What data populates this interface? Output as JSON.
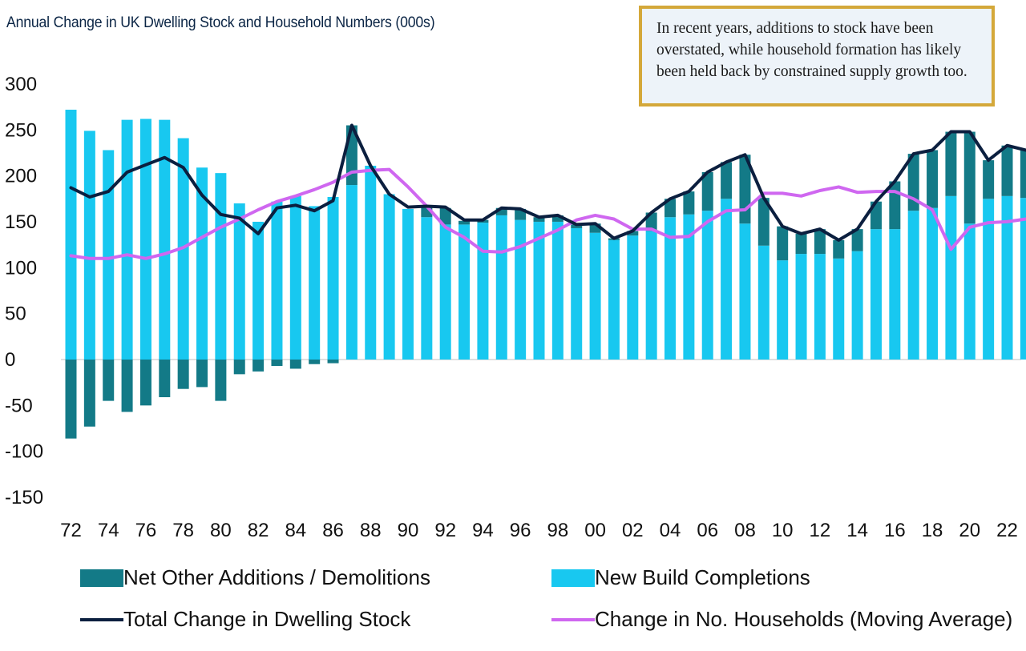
{
  "title": "Annual Change in UK Dwelling Stock and Household Numbers (000s)",
  "callout": "In recent years, additions to stock have been overstated, while household formation has likely been held back by constrained supply growth too.",
  "colors": {
    "new_build": "#18c8f0",
    "net_other": "#137a87",
    "total": "#0b1f3f",
    "households": "#cf67f0",
    "callout_border": "#d4a83a",
    "callout_bg": "#edf3f9"
  },
  "legend": {
    "net_other": "Net Other Additions / Demolitions",
    "new_build": "New Build Completions",
    "total": "Total Change in Dwelling Stock",
    "households": "Change in No. Households (Moving Average)"
  },
  "chart_data": {
    "type": "bar",
    "title": "Annual Change in UK Dwelling Stock and Household Numbers (000s)",
    "ylim": [
      -150,
      300
    ],
    "yticks": [
      300,
      250,
      200,
      150,
      100,
      50,
      0,
      -50,
      -100,
      -150
    ],
    "xtick_labels": [
      "72",
      "74",
      "76",
      "78",
      "80",
      "82",
      "84",
      "86",
      "88",
      "90",
      "92",
      "94",
      "96",
      "98",
      "00",
      "02",
      "04",
      "06",
      "08",
      "10",
      "12",
      "14",
      "16",
      "18",
      "20",
      "22"
    ],
    "categories": [
      "72",
      "73",
      "74",
      "75",
      "76",
      "77",
      "78",
      "79",
      "80",
      "81",
      "82",
      "83",
      "84",
      "85",
      "86",
      "87",
      "88",
      "89",
      "90",
      "91",
      "92",
      "93",
      "94",
      "95",
      "96",
      "97",
      "98",
      "99",
      "00",
      "01",
      "02",
      "03",
      "04",
      "05",
      "06",
      "07",
      "08",
      "09",
      "10",
      "11",
      "12",
      "13",
      "14",
      "15",
      "16",
      "17",
      "18",
      "19",
      "20",
      "21",
      "22",
      "23"
    ],
    "series": [
      {
        "name": "New Build Completions",
        "kind": "stacked-bar",
        "values": [
          272,
          249,
          228,
          261,
          262,
          261,
          241,
          209,
          203,
          170,
          150,
          172,
          178,
          167,
          177,
          190,
          211,
          180,
          164,
          155,
          147,
          147,
          149,
          157,
          152,
          150,
          150,
          143,
          138,
          130,
          135,
          140,
          155,
          158,
          162,
          175,
          148,
          124,
          108,
          115,
          115,
          110,
          118,
          142,
          142,
          162,
          165,
          178,
          148,
          175,
          178,
          176
        ]
      },
      {
        "name": "Net Other Additions / Demolitions",
        "kind": "stacked-bar",
        "values": [
          -86,
          -73,
          -45,
          -57,
          -50,
          -41,
          -32,
          -30,
          -45,
          -16,
          -13,
          -7,
          -10,
          -5,
          -4,
          65,
          0,
          0,
          0,
          12,
          18,
          4,
          3,
          8,
          12,
          5,
          7,
          4,
          10,
          2,
          5,
          20,
          20,
          25,
          42,
          40,
          75,
          52,
          37,
          22,
          27,
          20,
          24,
          30,
          52,
          62,
          63,
          70,
          100,
          42,
          55,
          52
        ]
      },
      {
        "name": "Total Change in Dwelling Stock",
        "kind": "line",
        "values": [
          187,
          177,
          183,
          204,
          212,
          220,
          209,
          179,
          158,
          154,
          137,
          165,
          168,
          162,
          173,
          255,
          211,
          180,
          166,
          167,
          166,
          152,
          152,
          165,
          164,
          155,
          157,
          147,
          148,
          132,
          140,
          160,
          175,
          183,
          204,
          215,
          223,
          176,
          145,
          137,
          142,
          130,
          142,
          172,
          194,
          224,
          228,
          248,
          248,
          217,
          233,
          228
        ]
      },
      {
        "name": "Change in No. Households (Moving Average)",
        "kind": "line",
        "values": [
          113,
          110,
          110,
          114,
          110,
          115,
          122,
          133,
          144,
          153,
          163,
          172,
          178,
          185,
          193,
          204,
          206,
          207,
          188,
          167,
          144,
          133,
          118,
          117,
          123,
          132,
          141,
          152,
          157,
          153,
          142,
          142,
          133,
          134,
          150,
          162,
          163,
          181,
          181,
          178,
          184,
          188,
          182,
          183,
          183,
          175,
          163,
          120,
          144,
          149,
          150,
          153
        ]
      }
    ]
  }
}
